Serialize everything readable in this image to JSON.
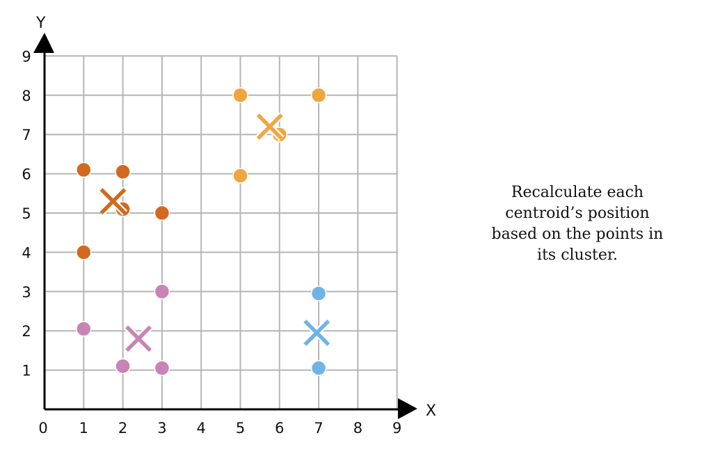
{
  "caption": {
    "line1": "Recalculate each",
    "line2": "centroid’s position",
    "line3": "based on the points in",
    "line4": "its cluster."
  },
  "chart_data": {
    "type": "scatter",
    "title": "",
    "xlabel": "X",
    "ylabel": "Y",
    "xlim": [
      0,
      9
    ],
    "ylim": [
      0,
      9
    ],
    "grid": true,
    "x_ticks": [
      "0",
      "1",
      "2",
      "3",
      "4",
      "5",
      "6",
      "7",
      "8",
      "9"
    ],
    "y_ticks": [
      "1",
      "2",
      "3",
      "4",
      "5",
      "6",
      "7",
      "8",
      "9"
    ],
    "series": [
      {
        "color": "#d2691e",
        "points": [
          [
            1,
            6.1
          ],
          [
            2,
            6.05
          ],
          [
            2,
            5.1
          ],
          [
            3,
            5
          ],
          [
            1,
            4
          ]
        ],
        "centroid": [
          1.75,
          5.3
        ]
      },
      {
        "color": "#f0a640",
        "points": [
          [
            5,
            8
          ],
          [
            7,
            8
          ],
          [
            6,
            7
          ],
          [
            5,
            5.95
          ]
        ],
        "centroid": [
          5.75,
          7.2
        ]
      },
      {
        "color": "#c784b4",
        "points": [
          [
            3,
            3
          ],
          [
            1,
            2.05
          ],
          [
            2,
            1.1
          ],
          [
            3,
            1.05
          ]
        ],
        "centroid": [
          2.4,
          1.8
        ]
      },
      {
        "color": "#6fb4e6",
        "points": [
          [
            7,
            2.95
          ],
          [
            7,
            1.05
          ]
        ],
        "centroid": [
          6.95,
          1.95
        ]
      }
    ]
  }
}
